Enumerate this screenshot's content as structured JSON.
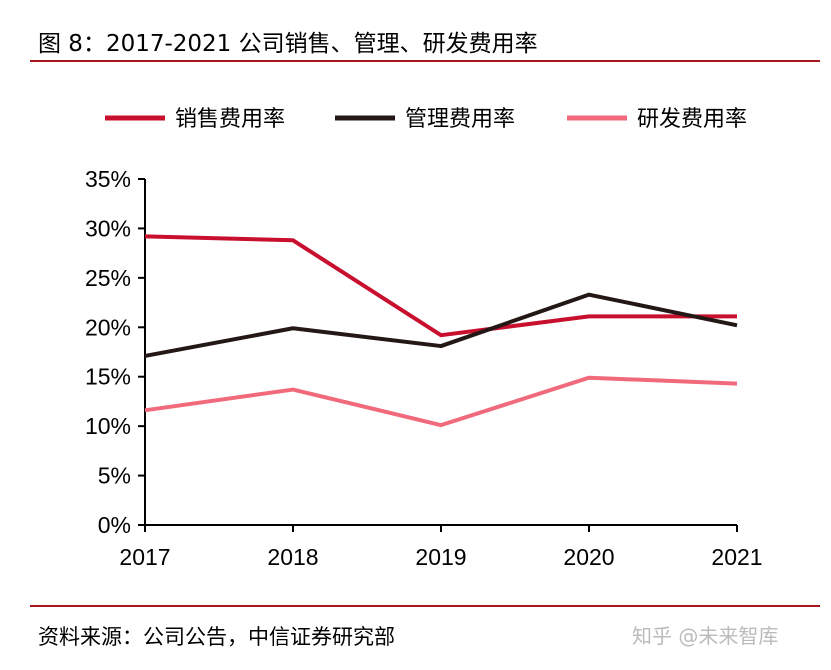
{
  "title": "图 8：2017-2021 公司销售、管理、研发费用率",
  "source": "资料来源：公司公告，中信证券研究部",
  "watermark": "知乎 @未来智库",
  "chart_data": {
    "type": "line",
    "title": "",
    "xlabel": "",
    "ylabel": "",
    "categories": [
      "2017",
      "2018",
      "2019",
      "2020",
      "2021"
    ],
    "ylim": [
      0,
      35
    ],
    "yticks": [
      "0%",
      "5%",
      "10%",
      "15%",
      "20%",
      "25%",
      "30%",
      "35%"
    ],
    "grid": false,
    "legend_position": "top",
    "series": [
      {
        "name": "销售费用率",
        "color": "#c8102e",
        "values": [
          29.2,
          28.8,
          19.2,
          21.1,
          21.1
        ]
      },
      {
        "name": "管理费用率",
        "color": "#231815",
        "values": [
          17.1,
          19.9,
          18.1,
          23.3,
          20.2
        ]
      },
      {
        "name": "研发费用率",
        "color": "#f06a7c",
        "values": [
          11.6,
          13.7,
          10.1,
          14.9,
          14.3
        ]
      }
    ]
  }
}
